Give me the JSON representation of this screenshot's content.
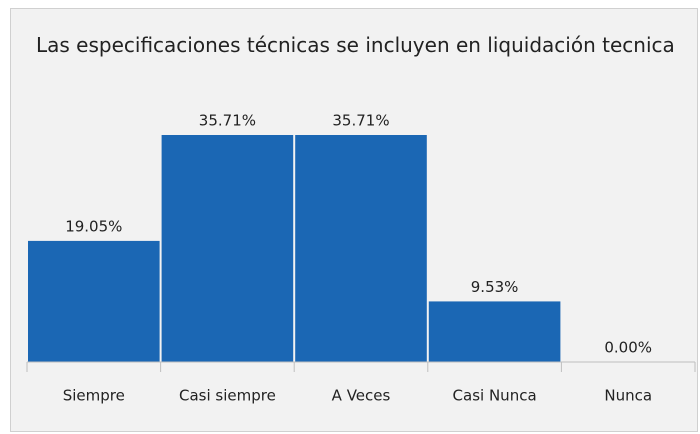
{
  "chart_data": {
    "type": "bar",
    "title": "Las especificaciones técnicas se incluyen en liquidación tecnica",
    "categories": [
      "Siempre",
      "Casi siempre",
      "A Veces",
      "Casi Nunca",
      "Nunca"
    ],
    "values": [
      19.05,
      35.71,
      35.71,
      9.53,
      0
    ],
    "value_labels": [
      "19.05%",
      "35.71%",
      "35.71%",
      "9.53%",
      "0.00%"
    ],
    "color": "#1b67b4"
  }
}
